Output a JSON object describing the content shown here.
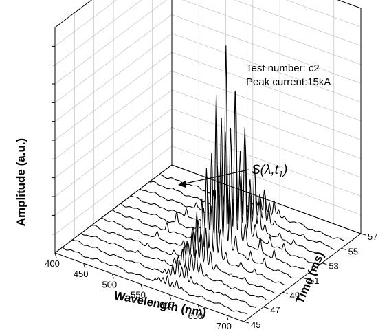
{
  "chart_data": {
    "type": "waterfall-3d-line",
    "title": "",
    "xlabel": "Wavelength (nm)",
    "ylabel": "Time (ms)",
    "zlabel": "Amplitude (a.u.)",
    "x_ticks": [
      "400",
      "450",
      "500",
      "550",
      "600",
      "650",
      "700"
    ],
    "y_ticks": [
      "45",
      "47",
      "49",
      "51",
      "53",
      "55",
      "57"
    ],
    "xlim": [
      400,
      730
    ],
    "ylim": [
      45,
      57
    ],
    "zlim": [
      0,
      1
    ],
    "z_tick_labels_shown": false,
    "grid": true,
    "annotation_lines": [
      "Test number: c2",
      "Peak current:15kA"
    ],
    "callout": {
      "text": "S(λ,t",
      "subscript": "1",
      "suffix": ")",
      "target_wavelength": 595,
      "target_time": 51.5
    },
    "series_times": [
      45.5,
      46.5,
      47.5,
      48.5,
      49.5,
      50.5,
      51.5,
      52.5,
      53.5,
      54.5,
      55.5
    ],
    "spectral_lines": [
      {
        "wavelength": 502,
        "amplitude": 0.06
      },
      {
        "wavelength": 548,
        "amplitude": 0.07
      },
      {
        "wavelength": 566,
        "amplitude": 0.22
      },
      {
        "wavelength": 573,
        "amplitude": 0.34
      },
      {
        "wavelength": 580,
        "amplitude": 0.6
      },
      {
        "wavelength": 588,
        "amplitude": 0.98
      },
      {
        "wavelength": 596,
        "amplitude": 0.57
      },
      {
        "wavelength": 604,
        "amplitude": 0.76
      },
      {
        "wavelength": 612,
        "amplitude": 0.33
      },
      {
        "wavelength": 622,
        "amplitude": 0.1
      },
      {
        "wavelength": 648,
        "amplitude": 0.06
      },
      {
        "wavelength": 672,
        "amplitude": 0.05
      }
    ],
    "time_profile": [
      {
        "time": 45.5,
        "scale": 0.05
      },
      {
        "time": 46.5,
        "scale": 0.1
      },
      {
        "time": 47.5,
        "scale": 0.16
      },
      {
        "time": 48.5,
        "scale": 0.26
      },
      {
        "time": 49.5,
        "scale": 0.45
      },
      {
        "time": 50.5,
        "scale": 0.78
      },
      {
        "time": 51.5,
        "scale": 1.0
      },
      {
        "time": 52.5,
        "scale": 0.72
      },
      {
        "time": 53.5,
        "scale": 0.42
      },
      {
        "time": 54.5,
        "scale": 0.22
      },
      {
        "time": 55.5,
        "scale": 0.1
      }
    ]
  }
}
